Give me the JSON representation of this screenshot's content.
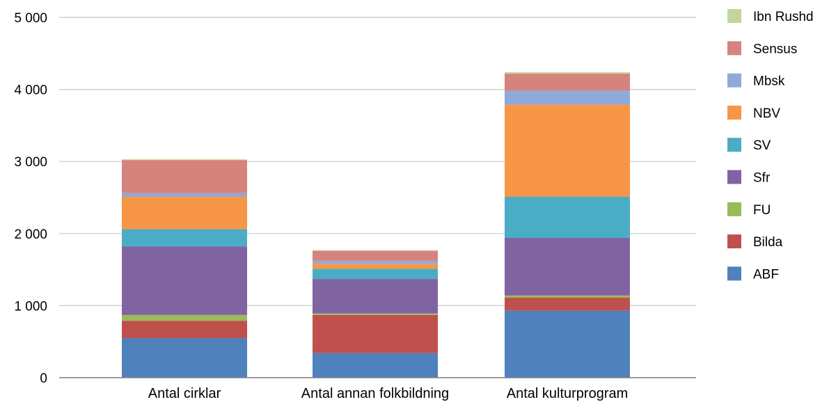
{
  "chart_data": {
    "type": "bar",
    "stacked": true,
    "categories": [
      "Antal cirklar",
      "Antal annan folkbildning",
      "Antal kulturprogram"
    ],
    "series": [
      {
        "name": "ABF",
        "color": "#4F81BD",
        "values": [
          550,
          340,
          930
        ]
      },
      {
        "name": "Bilda",
        "color": "#C0504D",
        "values": [
          240,
          530,
          180
        ]
      },
      {
        "name": "FU",
        "color": "#9BBB59",
        "values": [
          80,
          20,
          30
        ]
      },
      {
        "name": "Sfr",
        "color": "#8064A2",
        "values": [
          950,
          480,
          800
        ]
      },
      {
        "name": "SV",
        "color": "#4BACC6",
        "values": [
          240,
          140,
          570
        ]
      },
      {
        "name": "NBV",
        "color": "#F79646",
        "values": [
          450,
          70,
          1280
        ]
      },
      {
        "name": "Mbsk",
        "color": "#8EAADB",
        "values": [
          50,
          40,
          190
        ]
      },
      {
        "name": "Sensus",
        "color": "#D6837E",
        "values": [
          460,
          140,
          240
        ]
      },
      {
        "name": "Ibn Rushd",
        "color": "#C2D69B",
        "values": [
          10,
          10,
          20
        ]
      }
    ],
    "y_ticks": [
      0,
      1000,
      2000,
      3000,
      4000,
      5000
    ],
    "y_tick_labels": [
      "0",
      "1 000",
      "2 000",
      "3 000",
      "4 000",
      "5 000"
    ],
    "ylim": [
      0,
      5000
    ],
    "grid": true,
    "legend_position": "right",
    "legend_order": [
      "Ibn Rushd",
      "Sensus",
      "Mbsk",
      "NBV",
      "SV",
      "Sfr",
      "FU",
      "Bilda",
      "ABF"
    ]
  }
}
